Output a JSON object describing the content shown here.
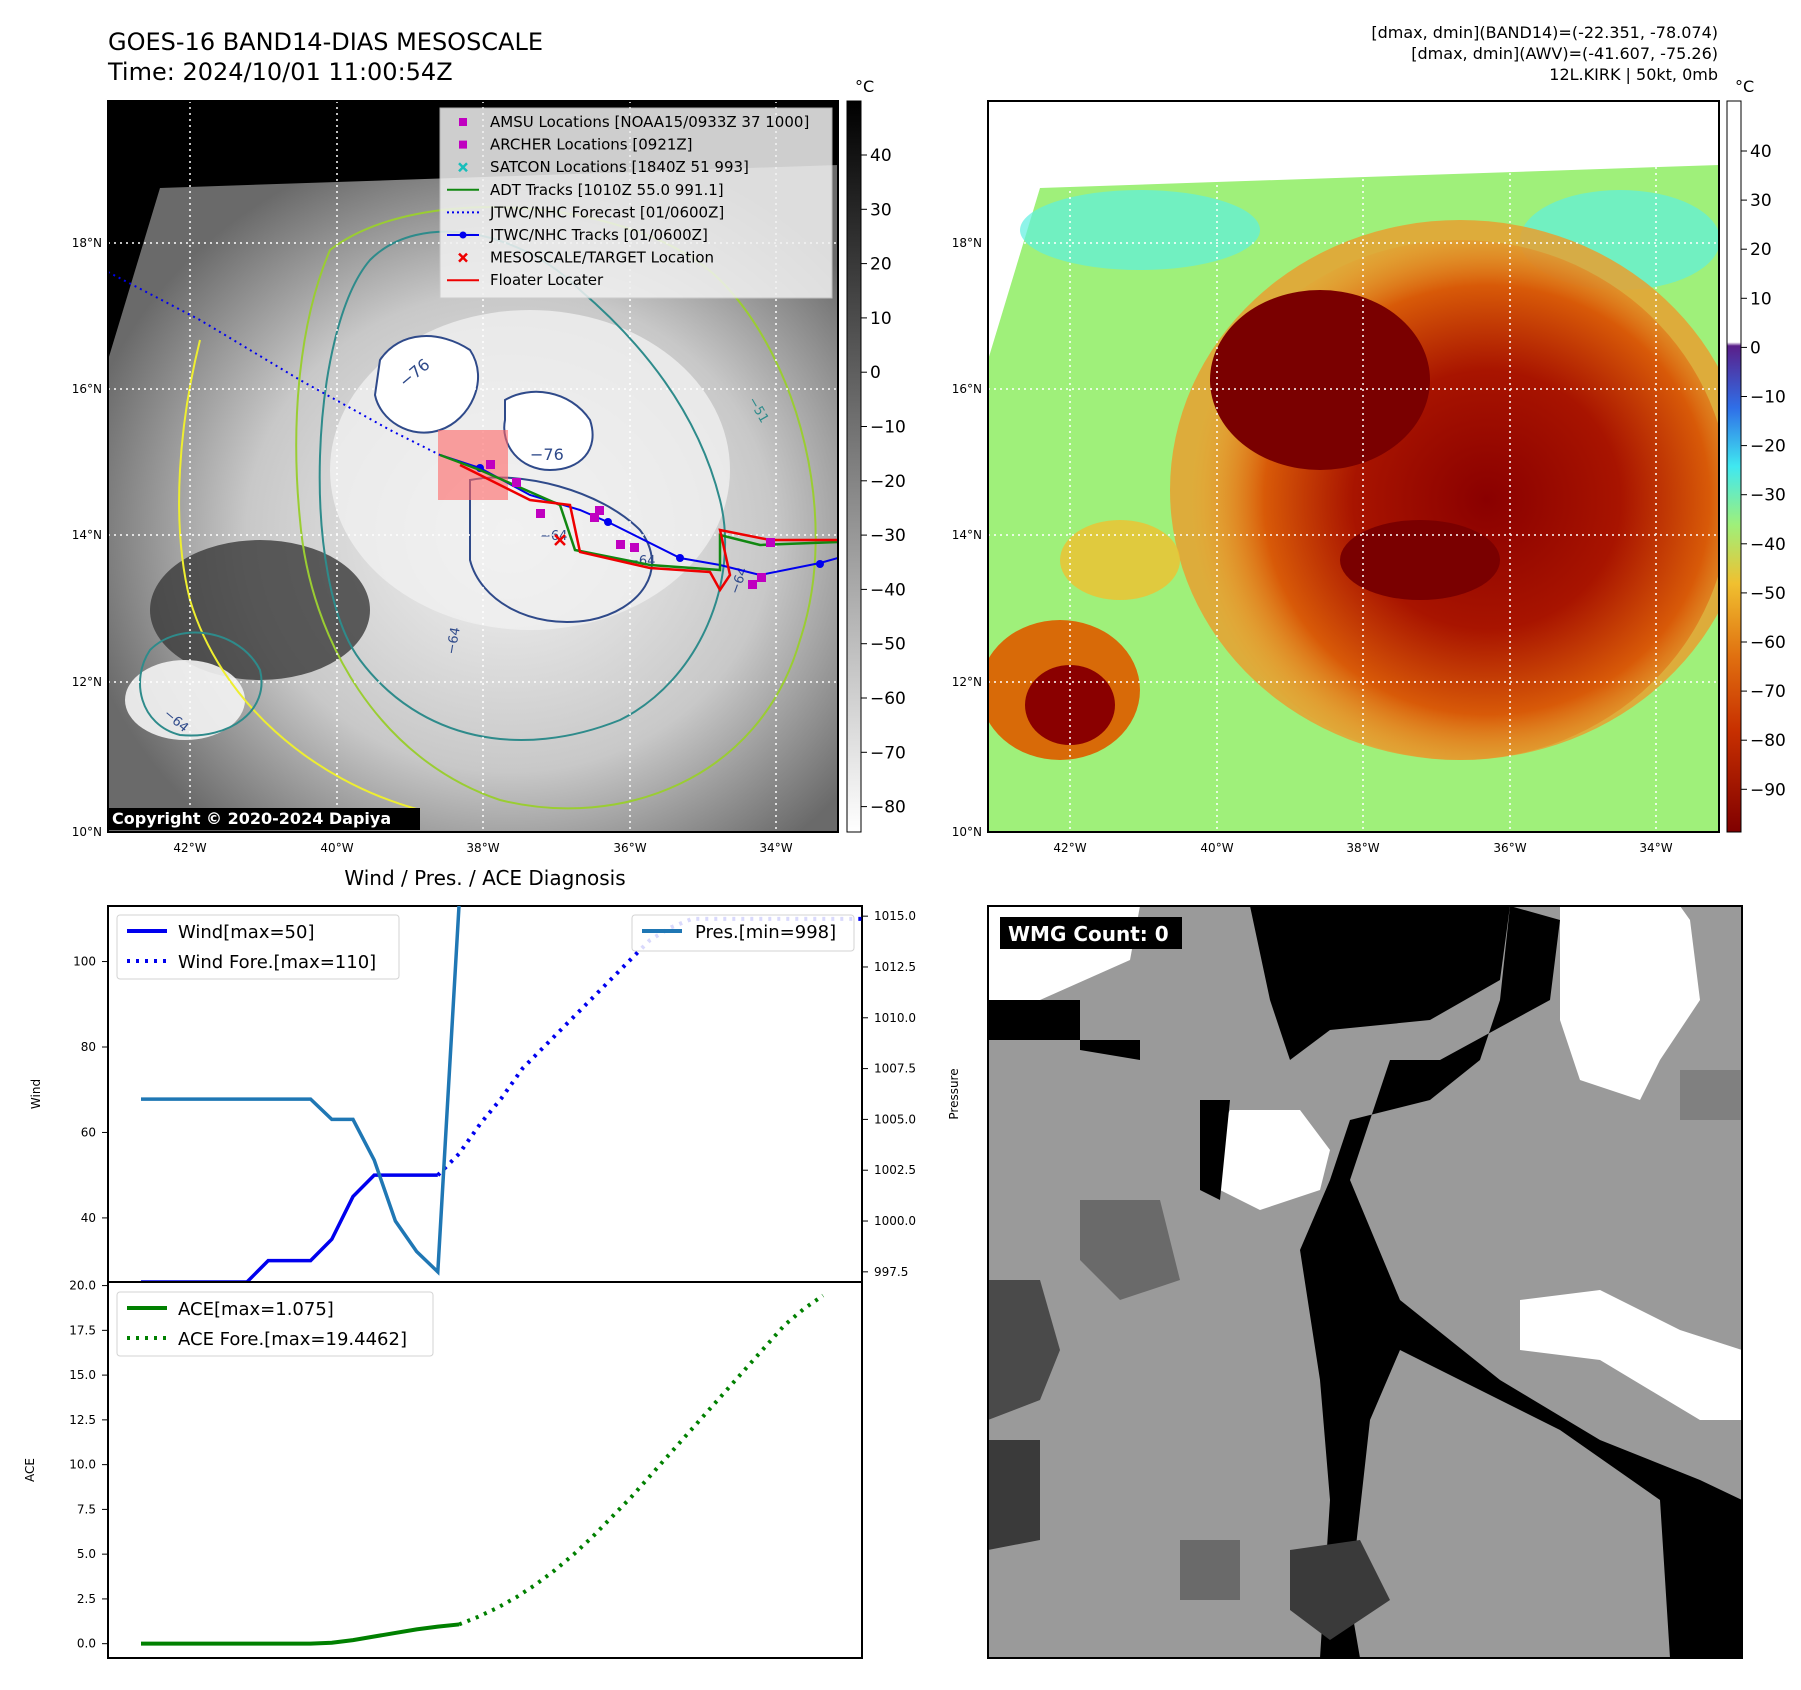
{
  "header": {
    "title_line1": "GOES-16 BAND14-DIAS MESOSCALE",
    "title_line2": "Time: 2024/10/01 11:00:54Z",
    "info_line1": "[dmax, dmin](BAND14)=(-22.351, -78.074)",
    "info_line2": "[dmax, dmin](AWV)=(-41.607, -75.26)",
    "info_line3": "12L.KIRK | 50kt, 0mb"
  },
  "map": {
    "lon_ticks": [
      "42°W",
      "40°W",
      "38°W",
      "36°W",
      "34°W"
    ],
    "lat_ticks": [
      "18°N",
      "16°N",
      "14°N",
      "12°N",
      "10°N"
    ],
    "contour_labels": [
      "−76",
      "−76",
      "−64",
      "−64",
      "−64",
      "−64",
      "−64",
      "−51"
    ],
    "copyright": "Copyright © 2020-2024 Dapiya",
    "legend": [
      {
        "label": "AMSU Locations [NOAA15/0933Z 37 1000]",
        "color": "#c000c0",
        "marker": "square"
      },
      {
        "label": "ARCHER Locations [0921Z]",
        "color": "#c000c0",
        "marker": "square"
      },
      {
        "label": "SATCON Locations [1840Z 51 993]",
        "color": "#17bebb",
        "marker": "x"
      },
      {
        "label": "ADT Tracks [1010Z 55.0 991.1]",
        "color": "#118811",
        "marker": "line"
      },
      {
        "label": "JTWC/NHC Forecast [01/0600Z]",
        "color": "#0000ee",
        "marker": "dotted"
      },
      {
        "label": "JTWC/NHC Tracks [01/0600Z]",
        "color": "#0000ee",
        "marker": "line-dot"
      },
      {
        "label": "MESOSCALE/TARGET Location",
        "color": "#ee0000",
        "marker": "x"
      },
      {
        "label": "Floater Locater",
        "color": "#ee0000",
        "marker": "line"
      }
    ]
  },
  "colorbar_left": {
    "unit": "°C",
    "ticks": [
      "40",
      "30",
      "20",
      "10",
      "0",
      "−10",
      "−20",
      "−30",
      "−40",
      "−50",
      "−60",
      "−70",
      "−80"
    ]
  },
  "colorbar_right": {
    "unit": "°C",
    "ticks": [
      "40",
      "30",
      "20",
      "10",
      "0",
      "−10",
      "−20",
      "−30",
      "−40",
      "−50",
      "−60",
      "−70",
      "−80",
      "−90"
    ]
  },
  "wind_panel": {
    "title": "Wind / Pres. / ACE Diagnosis",
    "ylabel": "Wind",
    "y2label": "Pressure",
    "yticks": [
      "40",
      "60",
      "80",
      "100"
    ],
    "y2ticks": [
      "997.5",
      "1000.0",
      "1002.5",
      "1005.0",
      "1007.5",
      "1010.0",
      "1012.5",
      "1015.0"
    ],
    "legend_left": [
      "Wind[max=50]",
      "Wind Fore.[max=110]"
    ],
    "legend_right": [
      "Pres.[min=998]"
    ]
  },
  "ace_panel": {
    "ylabel": "ACE",
    "yticks": [
      "0.0",
      "2.5",
      "5.0",
      "7.5",
      "10.0",
      "12.5",
      "15.0",
      "17.5",
      "20.0"
    ],
    "legend": [
      "ACE[max=1.075]",
      "ACE Fore.[max=19.4462]"
    ]
  },
  "wmg": {
    "label": "WMG Count: 0"
  },
  "chart_data": [
    {
      "type": "line",
      "panel": "wind",
      "ylim": [
        25,
        113
      ],
      "y2lim": [
        997,
        1015.5
      ],
      "series": [
        {
          "name": "Wind[max=50]",
          "color": "#0000ee",
          "style": "solid",
          "axis": "left",
          "values": [
            25,
            25,
            25,
            25,
            25,
            25,
            30,
            30,
            30,
            35,
            45,
            50,
            50,
            50,
            50
          ]
        },
        {
          "name": "Wind Fore.[max=110]",
          "color": "#0000ee",
          "style": "dotted",
          "axis": "left",
          "values": [
            50,
            55,
            62,
            68,
            75,
            80,
            85,
            90,
            95,
            100,
            105,
            108,
            110,
            110,
            110,
            110,
            110,
            110,
            110,
            110,
            110,
            110,
            110,
            105,
            103,
            100
          ]
        },
        {
          "name": "Pres.[min=998]",
          "color": "#1f77b4",
          "style": "solid",
          "axis": "right",
          "values": [
            1006,
            1006,
            1006,
            1006,
            1006,
            1006,
            1006,
            1006,
            1006,
            1005,
            1005,
            1003,
            1000,
            998.5,
            997.5,
            1015.5
          ]
        }
      ]
    },
    {
      "type": "line",
      "panel": "ace",
      "ylim": [
        -0.8,
        20.2
      ],
      "series": [
        {
          "name": "ACE[max=1.075]",
          "color": "#008000",
          "style": "solid",
          "values": [
            0,
            0,
            0,
            0,
            0,
            0,
            0,
            0,
            0,
            0.05,
            0.2,
            0.4,
            0.6,
            0.8,
            0.95,
            1.075
          ]
        },
        {
          "name": "ACE Fore.[max=19.4462]",
          "color": "#008000",
          "style": "dotted",
          "values": [
            1.075,
            1.5,
            2.0,
            2.6,
            3.3,
            4.1,
            5.0,
            6.0,
            7.1,
            8.2,
            9.4,
            10.6,
            11.8,
            13.0,
            14.2,
            15.4,
            16.6,
            17.8,
            18.7,
            19.4462
          ]
        }
      ]
    }
  ]
}
